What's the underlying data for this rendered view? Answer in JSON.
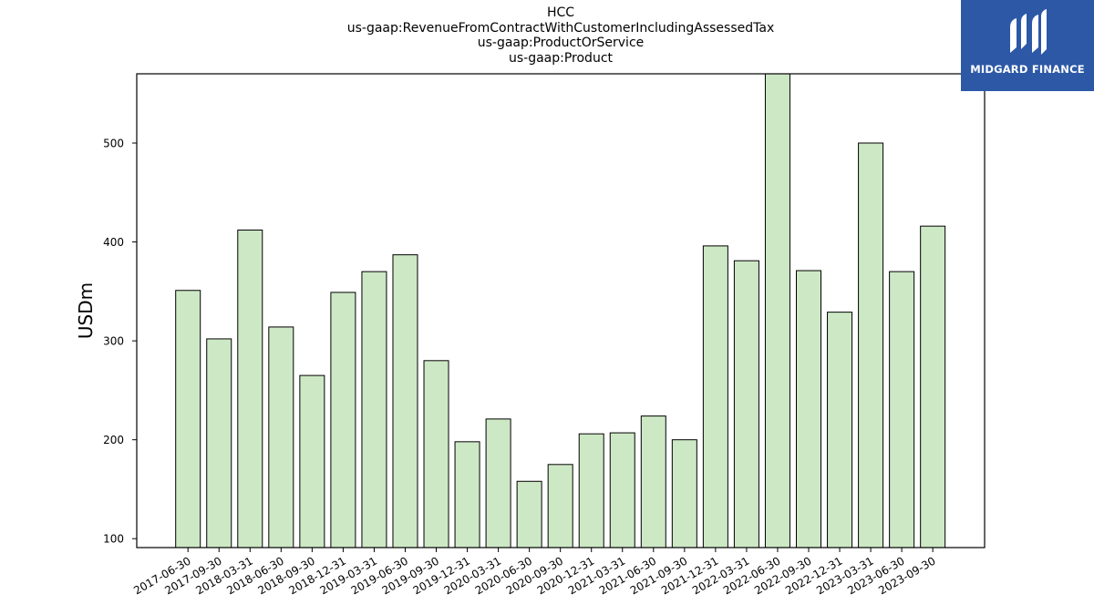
{
  "chart_data": {
    "type": "bar",
    "title_lines": [
      "HCC",
      "us-gaap:RevenueFromContractWithCustomerIncludingAssessedTax",
      "us-gaap:ProductOrService",
      "us-gaap:Product"
    ],
    "ylabel": "USDm",
    "xlabel": "",
    "ylim": [
      91,
      570
    ],
    "yticks": [
      100,
      200,
      300,
      400,
      500
    ],
    "grid": false,
    "bar_color": "#cde8c5",
    "bar_edge_color": "#000000",
    "categories": [
      "2017-06-30",
      "2017-09-30",
      "2018-03-31",
      "2018-06-30",
      "2018-09-30",
      "2018-12-31",
      "2019-03-31",
      "2019-06-30",
      "2019-09-30",
      "2019-12-31",
      "2020-03-31",
      "2020-06-30",
      "2020-09-30",
      "2020-12-31",
      "2021-03-31",
      "2021-06-30",
      "2021-09-30",
      "2021-12-31",
      "2022-03-31",
      "2022-06-30",
      "2022-09-30",
      "2022-12-31",
      "2023-03-31",
      "2023-06-30",
      "2023-09-30"
    ],
    "values": [
      351,
      302,
      412,
      314,
      265,
      349,
      370,
      387,
      280,
      198,
      221,
      158,
      175,
      206,
      207,
      224,
      200,
      396,
      381,
      570,
      371,
      329,
      500,
      370,
      416
    ]
  },
  "logo": {
    "text": "MIDGARD FINANCE",
    "background": "#2c58a6",
    "icon": "midgard-logo-icon"
  }
}
